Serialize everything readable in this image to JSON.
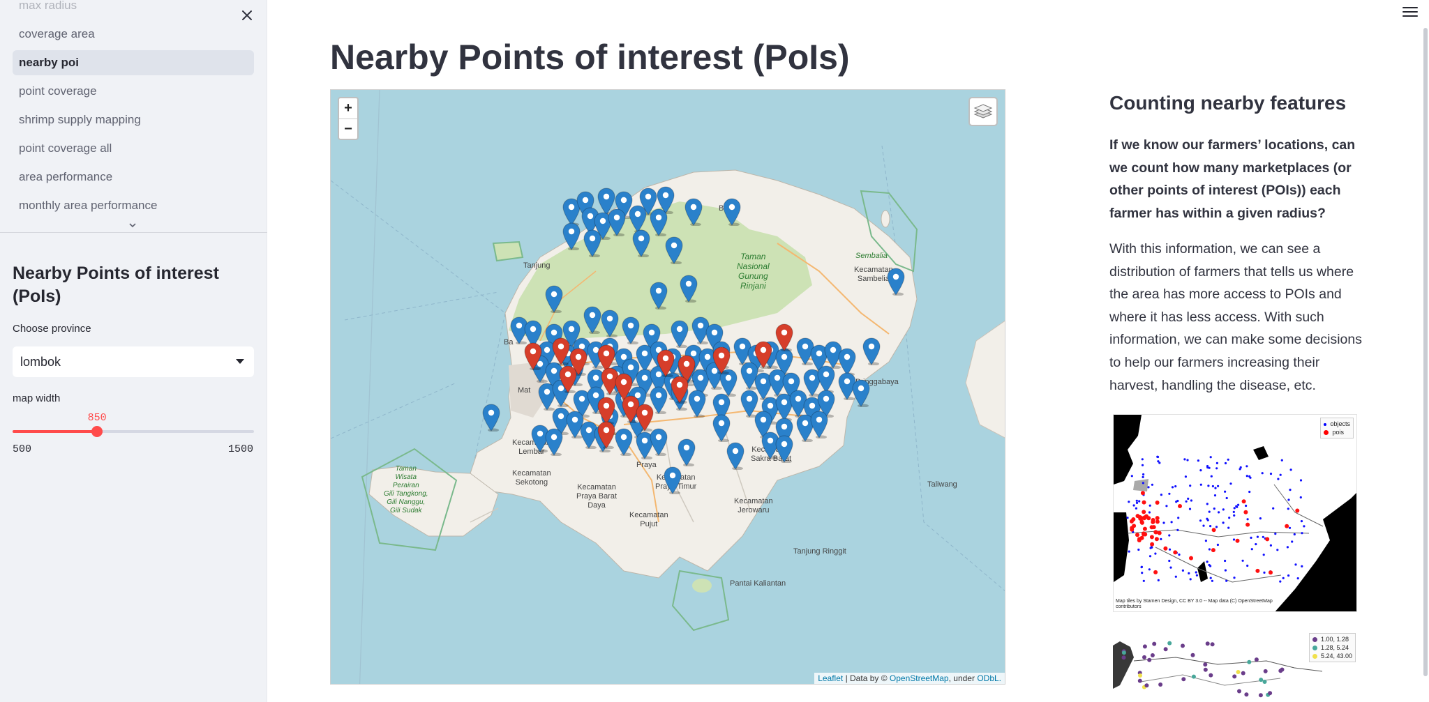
{
  "sidebar": {
    "nav": [
      {
        "label": "max radius"
      },
      {
        "label": "coverage area"
      },
      {
        "label": "nearby poi"
      },
      {
        "label": "point coverage"
      },
      {
        "label": "shrimp supply mapping"
      },
      {
        "label": "point coverage all"
      },
      {
        "label": "area performance"
      },
      {
        "label": "monthly area performance"
      }
    ],
    "active_index": 2,
    "title": "Nearby Points of interest (PoIs)",
    "province_label": "Choose province",
    "province_value": "lombok",
    "width_label": "map width",
    "slider": {
      "value": "850",
      "min": "500",
      "max": "1500",
      "fraction": 0.35
    }
  },
  "main": {
    "title": "Nearby Points of interest (PoIs)",
    "side_heading": "Counting nearby features",
    "side_question": "If we know our farmers’ locations, can we count how many marketplaces (or other points of interest (POIs)) each farmer has within a given radius?",
    "side_paragraph": "With this information, we can see a distribution of farmers that tells us where the area has more access to POIs and where it has less access. With such information, we can make some decisions to help our farmers increasing their harvest, handling the disease, etc."
  },
  "map": {
    "zoom_in": "+",
    "zoom_out": "−",
    "attribution": {
      "leaflet": "Leaflet",
      "data_by": " | Data by © ",
      "osm": "OpenStreetMap",
      "under": ", under ",
      "odbl": "ODbL."
    },
    "labels": {
      "bayan": "Bayan",
      "sembalia": "Sembalia",
      "kec_sambelia": "Kecamatan\nSambelia",
      "taman_rinjani": "Taman\nNasional\nGunung\nRinjani",
      "pringgabaya": "Pringgabaya",
      "taliwang": "Taliwang",
      "tanjung": "Tanjung",
      "kec_lembar": "Kecamatan\nLembar",
      "kec_sekotong": "Kecamatan\nSekotong",
      "taman_wisata": "Taman\nWisata\nPerairan\nGili Tangkong,\nGili Nanggu,\nGili Sudak",
      "kec_praya_barat": "Kecamatan\nPraya Barat\nDaya",
      "kec_praya_timur": "Kecamatan\nPraya Timur",
      "praya": "Praya",
      "kec_pujut": "Kecamatan\nPujut",
      "kec_sakra_barat": "Kecamatan\nSakra Barat",
      "kec_jerowaru": "Kecamatan\nJerowaru",
      "tanjung_ringgit": "Tanjung Ringgit",
      "pantai_kaliantan": "Pantai Kaliantan",
      "mataram": "Mat",
      "batu": "Ba"
    },
    "blue_marker_color": "#2a81cb",
    "red_marker_color": "#d63e2a"
  },
  "image1": {
    "legend_objects": "objects",
    "legend_pois": "pois",
    "credit": "Map tiles by Stamen Design, CC BY 3.0 -- Map data (C) OpenStreetMap\ncontributors"
  },
  "image2": {
    "legend": [
      "1.00,  1.28",
      "1.28,  5.24",
      "5.24, 43.00"
    ],
    "legend_colors": [
      "#6a3d8a",
      "#48a79a",
      "#f0e04a"
    ]
  }
}
